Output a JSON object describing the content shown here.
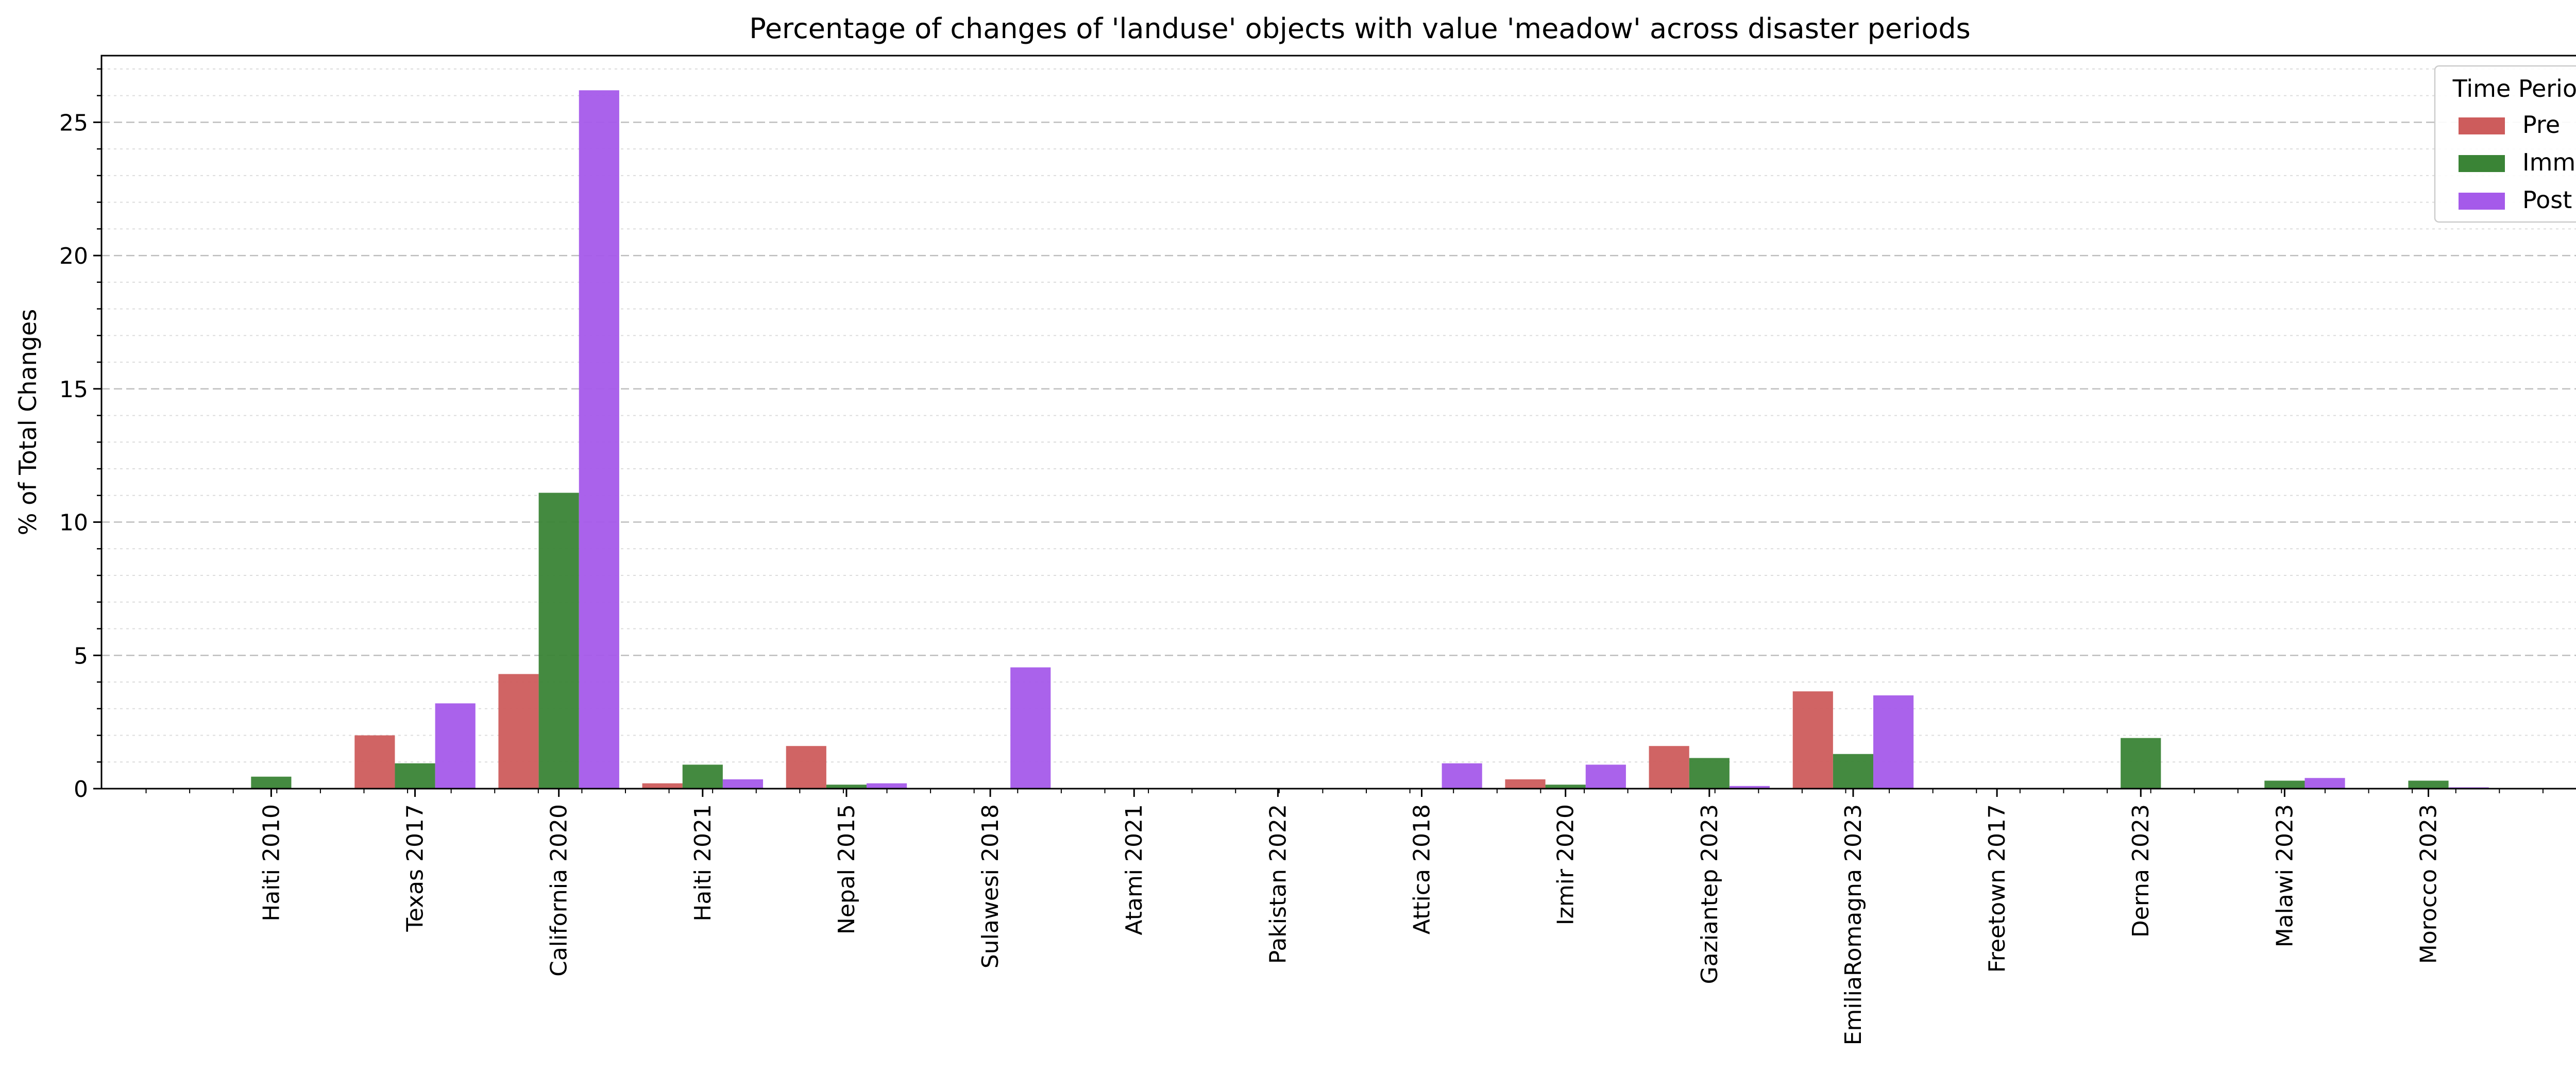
{
  "chart_data": {
    "type": "bar",
    "title": "Percentage of changes of 'landuse' objects with value 'meadow' across disaster periods",
    "xlabel": "",
    "ylabel": "% of Total Changes",
    "ylim": [
      0,
      27.5
    ],
    "yticks": [
      0,
      5,
      10,
      15,
      20,
      25
    ],
    "grid": {
      "major": true,
      "minor": true,
      "axis": "y"
    },
    "legend": {
      "title": "Time Period",
      "position": "top-right"
    },
    "categories": [
      "Haiti 2010",
      "Texas 2017",
      "California 2020",
      "Haiti 2021",
      "Nepal 2015",
      "Sulawesi 2018",
      "Atami 2021",
      "Pakistan 2022",
      "Attica 2018",
      "Izmir 2020",
      "Gaziantep 2023",
      "EmiliaRomagna 2023",
      "Freetown 2017",
      "Derna 2023",
      "Malawi 2023",
      "Morocco 2023"
    ],
    "series": [
      {
        "name": "Pre",
        "color": "#cd5c5c",
        "values": [
          0,
          2.0,
          4.3,
          0.2,
          1.6,
          0,
          0,
          0,
          0,
          0.35,
          1.6,
          3.65,
          0,
          0,
          0,
          0
        ]
      },
      {
        "name": "Imm",
        "color": "#3a8436",
        "values": [
          0.45,
          0.95,
          11.1,
          0.9,
          0.15,
          0,
          0,
          0,
          0,
          0.15,
          1.15,
          1.3,
          0,
          1.9,
          0.3,
          0.3
        ]
      },
      {
        "name": "Post",
        "color": "#a55aea",
        "values": [
          0,
          3.2,
          26.2,
          0.35,
          0.2,
          4.55,
          0,
          0,
          0.95,
          0.9,
          0.1,
          3.5,
          0,
          0,
          0.4,
          0.05
        ]
      }
    ]
  }
}
